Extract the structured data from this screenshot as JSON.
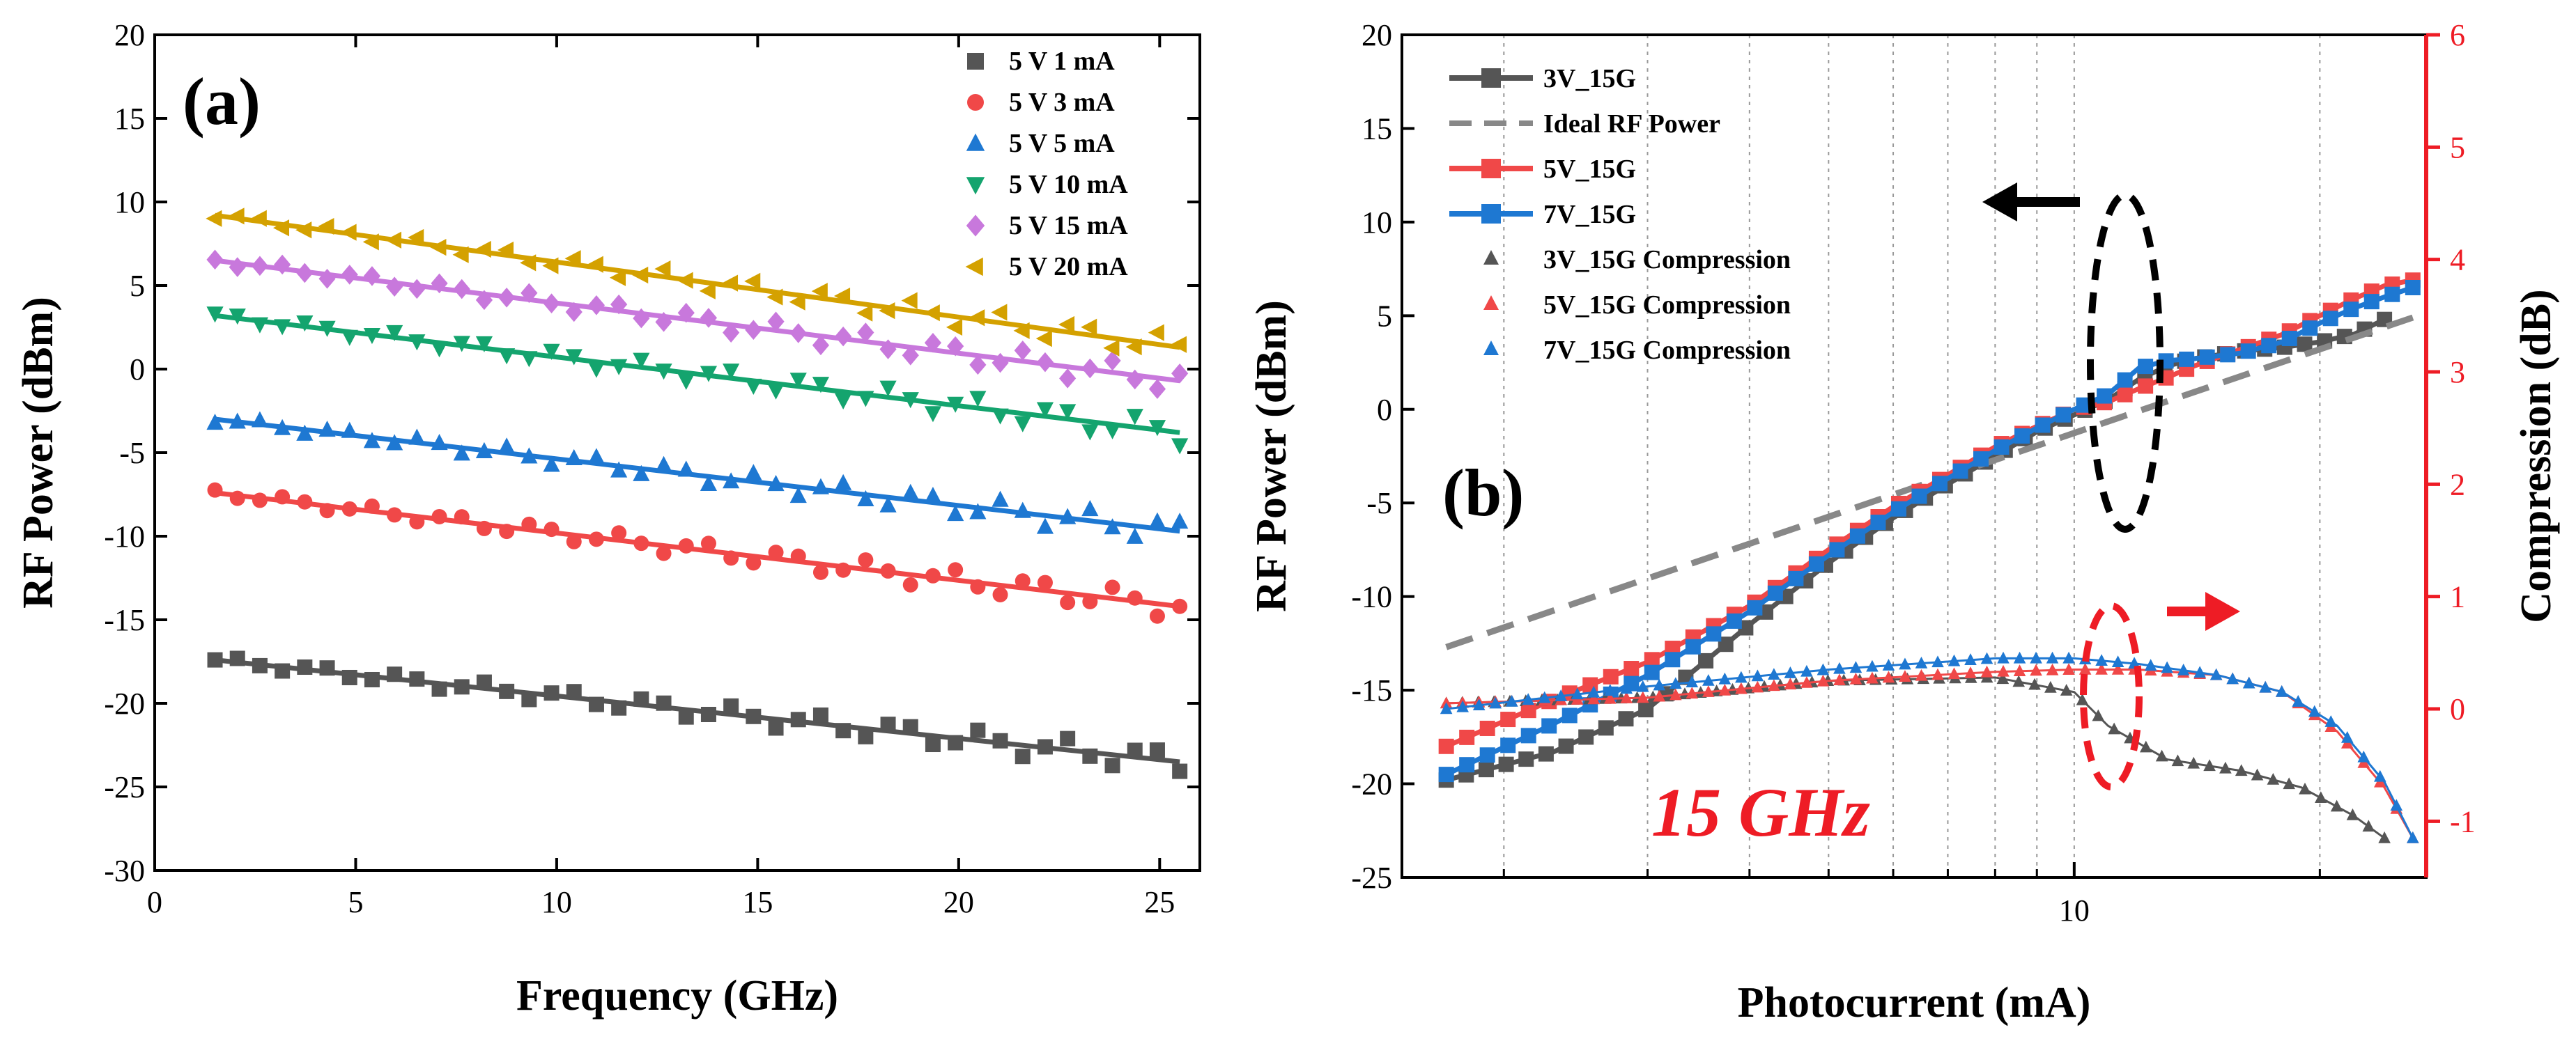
{
  "chart_data": [
    {
      "type": "scatter",
      "panel_label": "(a)",
      "xlabel": "Frequency (GHz)",
      "ylabel": "RF Power (dBm)",
      "xlim": [
        0,
        26
      ],
      "ylim": [
        -30,
        20
      ],
      "xticks": [
        "0",
        "5",
        "10",
        "15",
        "20",
        "25"
      ],
      "yticks": [
        "20",
        "15",
        "10",
        "5",
        "0",
        "-5",
        "-10",
        "-15",
        "-20",
        "-25",
        "-30"
      ],
      "grid": false,
      "legend_position": "top-right",
      "x_range": [
        1.5,
        25.5
      ],
      "series": [
        {
          "name": "5 V 1 mA",
          "marker": "square",
          "color": "#555555",
          "fit_start": -17.4,
          "fit_end": -23.5
        },
        {
          "name": "5 V 3 mA",
          "marker": "circle",
          "color": "#f04848",
          "fit_start": -7.4,
          "fit_end": -14.2
        },
        {
          "name": "5 V 5 mA",
          "marker": "triangle-up",
          "color": "#1e78d2",
          "fit_start": -3.0,
          "fit_end": -9.7
        },
        {
          "name": "5 V 10 mA",
          "marker": "triangle-down",
          "color": "#14a46e",
          "fit_start": 3.2,
          "fit_end": -3.8
        },
        {
          "name": "5 V 15 mA",
          "marker": "diamond",
          "color": "#c878dc",
          "fit_start": 6.5,
          "fit_end": -0.7
        },
        {
          "name": "5 V 20 mA",
          "marker": "triangle-left",
          "color": "#d4a100",
          "fit_start": 9.2,
          "fit_end": 1.3
        }
      ]
    },
    {
      "type": "line",
      "panel_label": "(b)",
      "annotation": "15 GHz",
      "annotation_color": "#ee1c25",
      "xlabel": "Photocurrent (mA)",
      "ylabel": "RF Power (dBm)",
      "y2label": "Compression (dB)",
      "x_scale": "log",
      "xlim": [
        1.5,
        27
      ],
      "ylim": [
        -25,
        20
      ],
      "y2lim": [
        -1.5,
        6
      ],
      "xticks": [
        "10"
      ],
      "yticks": [
        "20",
        "15",
        "10",
        "5",
        "0",
        "-5",
        "-10",
        "-15",
        "-20",
        "-25"
      ],
      "y2ticks": [
        "6",
        "5",
        "4",
        "3",
        "2",
        "1",
        "0",
        "-1"
      ],
      "y2_color": "#ee1c25",
      "grid": "vertical minor",
      "legend_position": "top-left",
      "series": [
        {
          "name": "3V_15G",
          "color": "#555555",
          "marker": "square",
          "points": [
            [
              1.7,
              -19.8
            ],
            [
              2.3,
              -18.3
            ],
            [
              3,
              -16
            ],
            [
              4,
              -11.5
            ],
            [
              5,
              -8.2
            ],
            [
              6,
              -5.8
            ],
            [
              7,
              -4
            ],
            [
              8,
              -2.5
            ],
            [
              9,
              -1.2
            ],
            [
              10,
              -0.3
            ],
            [
              11,
              0.5
            ],
            [
              12,
              1.6
            ],
            [
              13,
              2.3
            ],
            [
              14,
              2.7
            ],
            [
              16,
              3.1
            ],
            [
              18,
              3.3
            ],
            [
              20,
              3.6
            ],
            [
              22,
              4.0
            ],
            [
              24,
              4.8
            ]
          ]
        },
        {
          "name": "Ideal RF Power",
          "color": "#888888",
          "dashed": true,
          "points": [
            [
              1.7,
              -12.7
            ],
            [
              26,
              4.9
            ]
          ]
        },
        {
          "name": "5V_15G",
          "color": "#f04848",
          "marker": "square",
          "points": [
            [
              1.7,
              -18
            ],
            [
              2.3,
              -15.5
            ],
            [
              3,
              -13.5
            ],
            [
              4,
              -10.5
            ],
            [
              5,
              -7.5
            ],
            [
              6,
              -5.2
            ],
            [
              7,
              -3.5
            ],
            [
              8,
              -2
            ],
            [
              9,
              -0.9
            ],
            [
              10,
              0
            ],
            [
              11,
              0.4
            ],
            [
              12,
              1.1
            ],
            [
              13,
              1.7
            ],
            [
              14,
              2.3
            ],
            [
              16,
              3.2
            ],
            [
              18,
              4.0
            ],
            [
              20,
              5.0
            ],
            [
              22,
              5.9
            ],
            [
              24,
              6.6
            ],
            [
              26,
              6.9
            ]
          ]
        },
        {
          "name": "7V_15G",
          "color": "#1e78d2",
          "marker": "square",
          "points": [
            [
              1.7,
              -19.5
            ],
            [
              2.3,
              -16.8
            ],
            [
              3,
              -14.2
            ],
            [
              4,
              -10.8
            ],
            [
              5,
              -7.8
            ],
            [
              6,
              -5.5
            ],
            [
              7,
              -3.7
            ],
            [
              8,
              -2.2
            ],
            [
              9,
              -1
            ],
            [
              10,
              0
            ],
            [
              11,
              0.8
            ],
            [
              12,
              2.2
            ],
            [
              13,
              2.6
            ],
            [
              14,
              2.7
            ],
            [
              16,
              3.0
            ],
            [
              18,
              3.6
            ],
            [
              20,
              4.6
            ],
            [
              22,
              5.4
            ],
            [
              24,
              6.0
            ],
            [
              26,
              6.5
            ]
          ]
        },
        {
          "name": "3V_15G Compression",
          "axis": "y2",
          "color": "#555555",
          "marker": "triangle-up",
          "points": [
            [
              1.7,
              0.05
            ],
            [
              3,
              0.1
            ],
            [
              5,
              0.25
            ],
            [
              8,
              0.28
            ],
            [
              10,
              0.15
            ],
            [
              11,
              -0.15
            ],
            [
              13,
              -0.45
            ],
            [
              16,
              -0.55
            ],
            [
              19,
              -0.7
            ],
            [
              22,
              -0.95
            ],
            [
              24,
              -1.15
            ]
          ]
        },
        {
          "name": "5V_15G Compression",
          "axis": "y2",
          "color": "#f04848",
          "marker": "triangle-up",
          "points": [
            [
              1.7,
              0.05
            ],
            [
              3,
              0.1
            ],
            [
              5,
              0.25
            ],
            [
              8,
              0.33
            ],
            [
              10,
              0.35
            ],
            [
              12,
              0.35
            ],
            [
              15,
              0.3
            ],
            [
              18,
              0.15
            ],
            [
              21,
              -0.2
            ],
            [
              24,
              -0.7
            ],
            [
              26,
              -1.15
            ]
          ]
        },
        {
          "name": "7V_15G Compression",
          "axis": "y2",
          "color": "#1e78d2",
          "marker": "triangle-up",
          "points": [
            [
              1.7,
              0.0
            ],
            [
              3,
              0.2
            ],
            [
              5,
              0.35
            ],
            [
              8,
              0.45
            ],
            [
              10,
              0.45
            ],
            [
              12,
              0.4
            ],
            [
              15,
              0.3
            ],
            [
              18,
              0.15
            ],
            [
              21,
              -0.15
            ],
            [
              24,
              -0.65
            ],
            [
              26,
              -1.15
            ]
          ]
        }
      ]
    }
  ]
}
